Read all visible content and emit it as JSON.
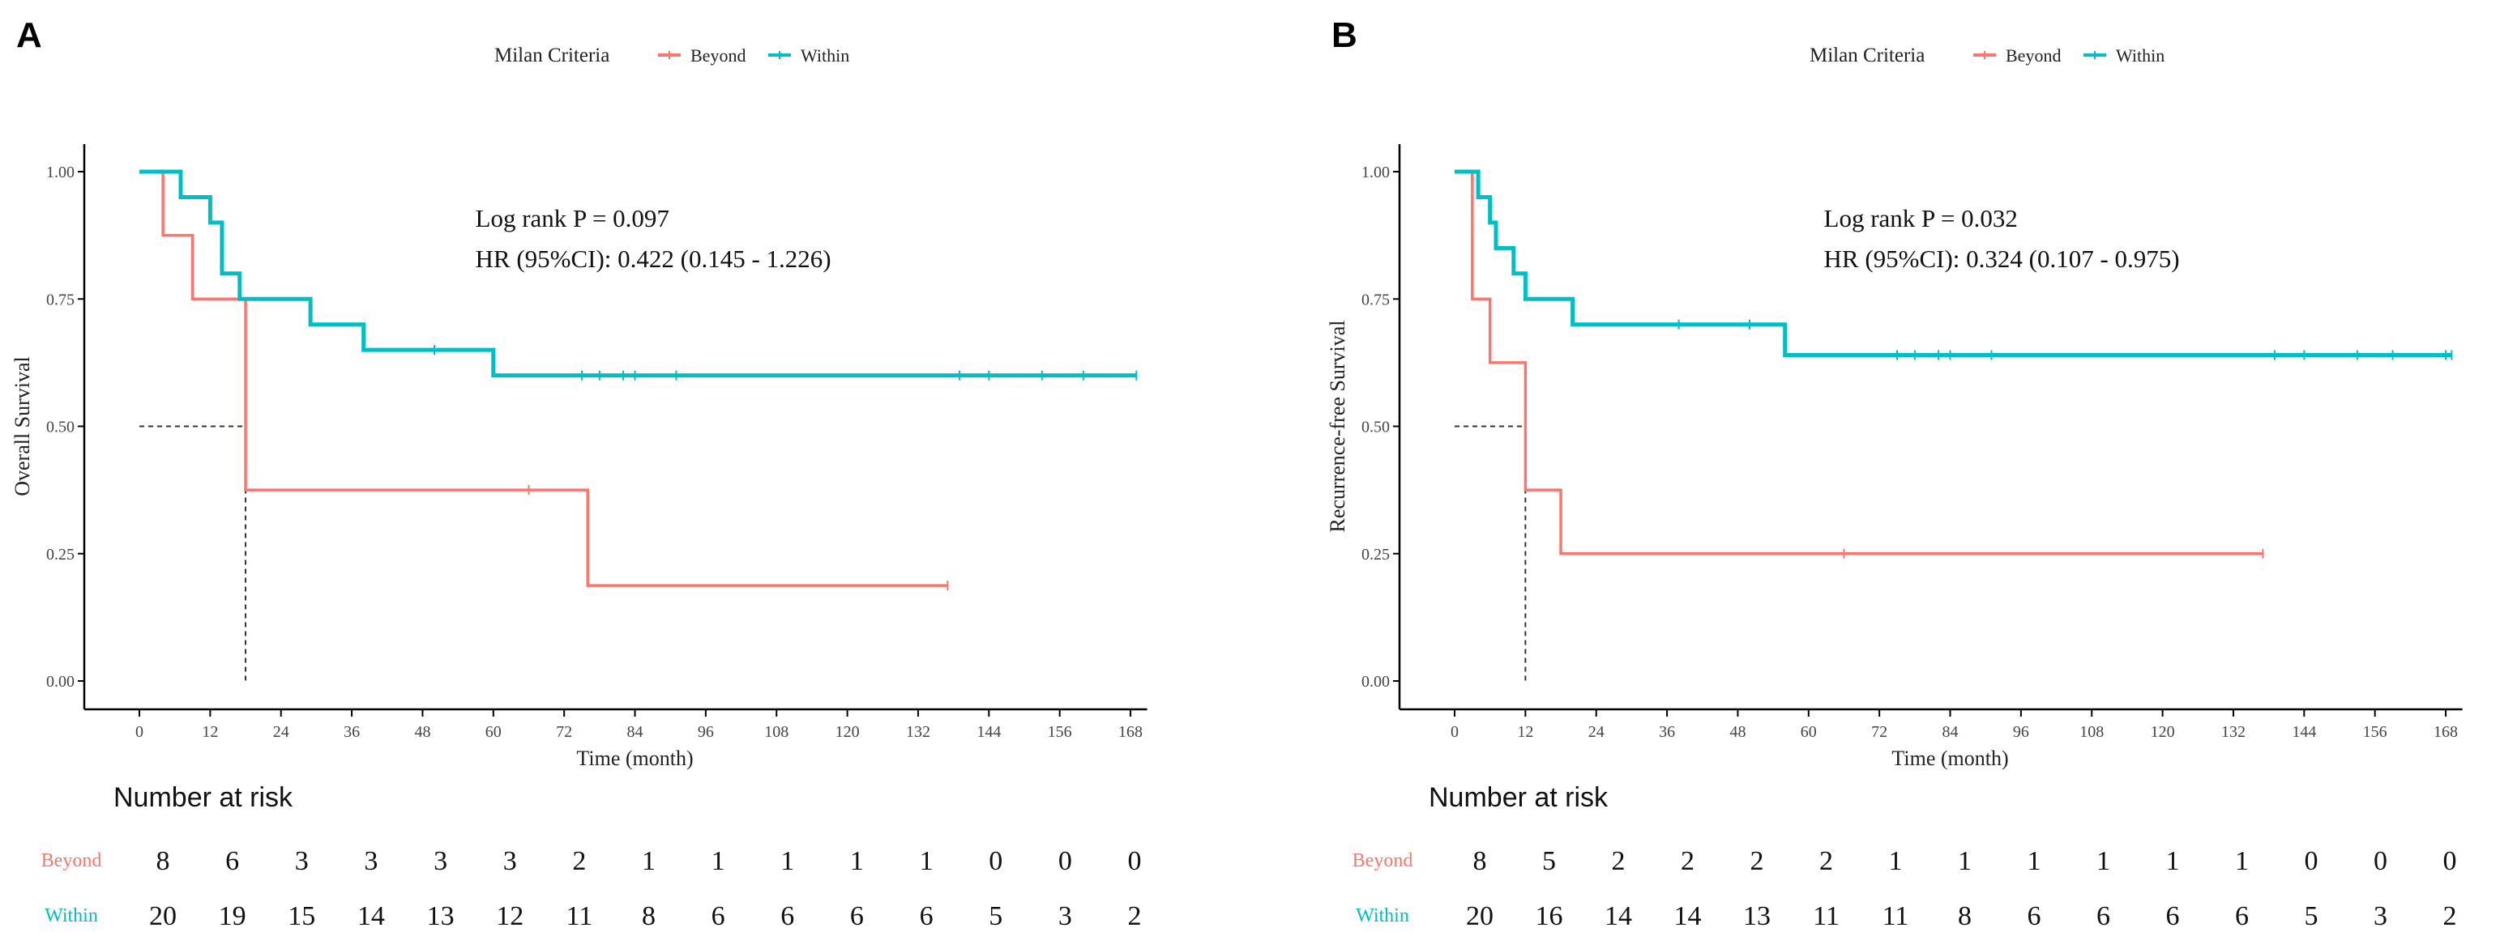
{
  "chart_data": [
    {
      "panel_label": "A",
      "type": "line",
      "subtype": "kaplan-meier",
      "xlabel": "Time (month)",
      "ylabel": "Overall Survival",
      "xlim": [
        0,
        170
      ],
      "ylim": [
        0,
        1
      ],
      "xticks": [
        0,
        12,
        24,
        36,
        48,
        60,
        72,
        84,
        96,
        108,
        120,
        132,
        144,
        156,
        168
      ],
      "yticks": [
        "0.00",
        "0.25",
        "0.50",
        "0.75",
        "1.00"
      ],
      "grid": false,
      "legend": {
        "title": "Milan Criteria",
        "placement": "top-center",
        "items": [
          "Beyond",
          "Within"
        ]
      },
      "annotations": [
        "Log rank P = 0.097",
        "HR (95%CI): 0.422 (0.145 - 1.226)"
      ],
      "median_line": {
        "survival": 0.5,
        "time": 18
      },
      "series": [
        {
          "name": "Beyond",
          "color": "#F8766D",
          "steps": [
            [
              0,
              1
            ],
            [
              4,
              0.875
            ],
            [
              9,
              0.75
            ],
            [
              18,
              0.375
            ],
            [
              76,
              0.1875
            ]
          ],
          "end": 137,
          "censored": [
            66,
            137
          ]
        },
        {
          "name": "Within",
          "color": "#00BFC4",
          "steps": [
            [
              0,
              1
            ],
            [
              7,
              0.95
            ],
            [
              12,
              0.9
            ],
            [
              14,
              0.8
            ],
            [
              17,
              0.75
            ],
            [
              29,
              0.7
            ],
            [
              38,
              0.65
            ],
            [
              60,
              0.6
            ]
          ],
          "end": 169,
          "censored": [
            50,
            75,
            78,
            82,
            84,
            91,
            139,
            144,
            153,
            160,
            169
          ]
        }
      ],
      "risk_table": {
        "title": "Number at risk",
        "rows": [
          {
            "name": "Beyond",
            "values": [
              8,
              6,
              3,
              3,
              3,
              3,
              2,
              1,
              1,
              1,
              1,
              1,
              0,
              0,
              0
            ]
          },
          {
            "name": "Within",
            "values": [
              20,
              19,
              15,
              14,
              13,
              12,
              11,
              8,
              6,
              6,
              6,
              6,
              5,
              3,
              2
            ]
          }
        ]
      }
    },
    {
      "panel_label": "B",
      "type": "line",
      "subtype": "kaplan-meier",
      "xlabel": "Time (month)",
      "ylabel": "Recurrence-free Survival",
      "xlim": [
        0,
        170
      ],
      "ylim": [
        0,
        1
      ],
      "xticks": [
        0,
        12,
        24,
        36,
        48,
        60,
        72,
        84,
        96,
        108,
        120,
        132,
        144,
        156,
        168
      ],
      "yticks": [
        "0.00",
        "0.25",
        "0.50",
        "0.75",
        "1.00"
      ],
      "grid": false,
      "legend": {
        "title": "Milan Criteria",
        "placement": "top-center",
        "items": [
          "Beyond",
          "Within"
        ]
      },
      "annotations": [
        "Log rank P = 0.032",
        "HR (95%CI): 0.324 (0.107 - 0.975)"
      ],
      "median_line": {
        "survival": 0.5,
        "time": 12
      },
      "series": [
        {
          "name": "Beyond",
          "color": "#F8766D",
          "steps": [
            [
              0,
              1
            ],
            [
              3,
              0.75
            ],
            [
              6,
              0.625
            ],
            [
              12,
              0.375
            ],
            [
              18,
              0.25
            ]
          ],
          "end": 137,
          "censored": [
            66,
            137
          ]
        },
        {
          "name": "Within",
          "color": "#00BFC4",
          "steps": [
            [
              0,
              1
            ],
            [
              4,
              0.95
            ],
            [
              6,
              0.9
            ],
            [
              7,
              0.85
            ],
            [
              10,
              0.8
            ],
            [
              12,
              0.75
            ],
            [
              20,
              0.7
            ],
            [
              56,
              0.64
            ]
          ],
          "end": 169,
          "censored": [
            38,
            50,
            75,
            78,
            82,
            84,
            91,
            139,
            144,
            153,
            159,
            168,
            169
          ]
        }
      ],
      "risk_table": {
        "title": "Number at risk",
        "rows": [
          {
            "name": "Beyond",
            "values": [
              8,
              5,
              2,
              2,
              2,
              2,
              1,
              1,
              1,
              1,
              1,
              1,
              0,
              0,
              0
            ]
          },
          {
            "name": "Within",
            "values": [
              20,
              16,
              14,
              14,
              13,
              11,
              11,
              8,
              6,
              6,
              6,
              6,
              5,
              3,
              2
            ]
          }
        ]
      }
    }
  ]
}
